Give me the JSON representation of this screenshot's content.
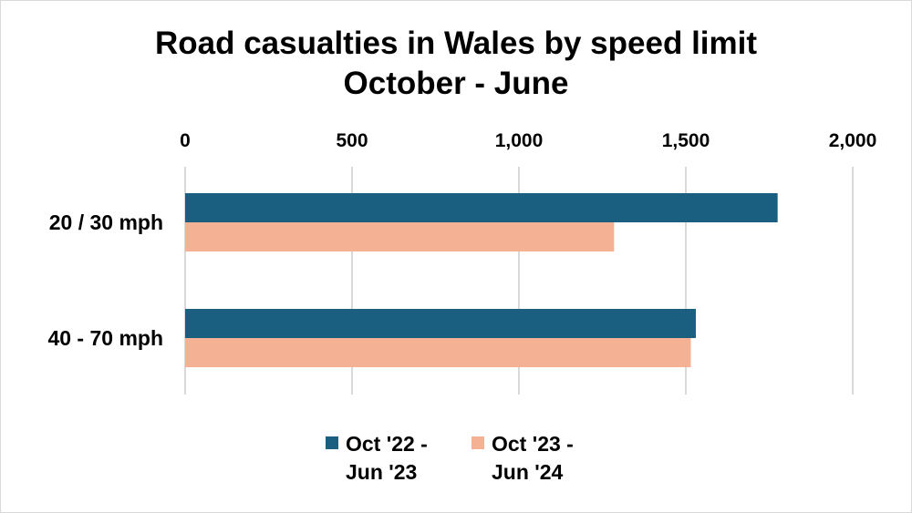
{
  "chart_data": {
    "type": "bar",
    "orientation": "horizontal",
    "title_lines": [
      "Road casualties in Wales by speed limit",
      "October - June"
    ],
    "categories": [
      "20 / 30 mph",
      "40 - 70 mph"
    ],
    "series": [
      {
        "name_lines": [
          "Oct '22 -",
          "Jun '23"
        ],
        "color": "#1a5e80",
        "values": [
          1775,
          1530
        ]
      },
      {
        "name_lines": [
          "Oct '23 -",
          "Jun '24"
        ],
        "color": "#f4b194",
        "values": [
          1285,
          1515
        ]
      }
    ],
    "xlim": [
      0,
      2000
    ],
    "x_ticks": [
      0,
      500,
      1000,
      1500,
      2000
    ],
    "x_tick_labels": [
      "0",
      "500",
      "1,000",
      "1,500",
      "2,000"
    ],
    "x_axis_position": "top",
    "grid": true,
    "legend_position": "bottom"
  }
}
